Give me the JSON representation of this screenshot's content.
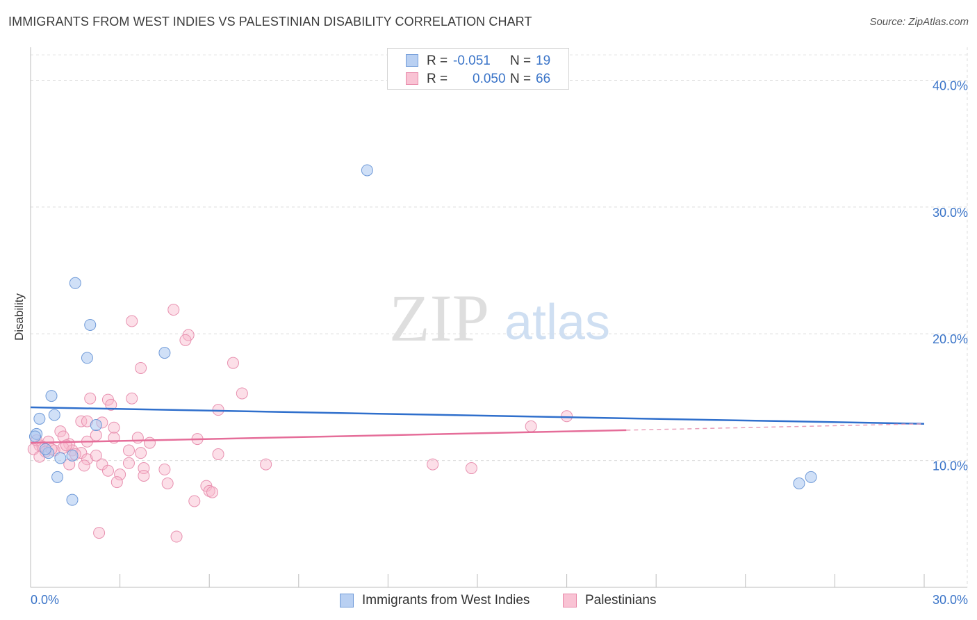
{
  "title": "IMMIGRANTS FROM WEST INDIES VS PALESTINIAN DISABILITY CORRELATION CHART",
  "source": "Source: ZipAtlas.com",
  "watermark": {
    "zip": "ZIP",
    "atlas": "atlas"
  },
  "legend": {
    "r_label": "R =",
    "n_label": "N =",
    "series": [
      {
        "name": "Immigrants from West Indies",
        "r": "-0.051",
        "n": "19",
        "fill": "#b9d0f2",
        "stroke": "#6f9ad8"
      },
      {
        "name": "Palestinians",
        "r": "0.050",
        "n": "66",
        "fill": "#f9c3d4",
        "stroke": "#e887a8"
      }
    ]
  },
  "chart_data": {
    "type": "scatter",
    "title": "IMMIGRANTS FROM WEST INDIES VS PALESTINIAN DISABILITY CORRELATION CHART",
    "xlabel": "",
    "ylabel": "Disability",
    "xlim": [
      0,
      30
    ],
    "ylim": [
      0,
      42
    ],
    "x_tick_labels": [
      "0.0%",
      "30.0%"
    ],
    "y_ticks": [
      10,
      20,
      30,
      40
    ],
    "y_tick_labels": [
      "10.0%",
      "20.0%",
      "30.0%",
      "40.0%"
    ],
    "grid": true,
    "series": [
      {
        "name": "Immigrants from West Indies",
        "color": "#3a74c8",
        "points": [
          [
            11.3,
            32.9
          ],
          [
            1.5,
            24.0
          ],
          [
            2.0,
            20.7
          ],
          [
            1.9,
            18.1
          ],
          [
            4.5,
            18.5
          ],
          [
            0.7,
            15.1
          ],
          [
            0.3,
            13.3
          ],
          [
            0.8,
            13.6
          ],
          [
            2.2,
            12.8
          ],
          [
            0.2,
            12.1
          ],
          [
            0.15,
            11.9
          ],
          [
            0.6,
            10.6
          ],
          [
            1.4,
            10.4
          ],
          [
            1.0,
            10.2
          ],
          [
            0.9,
            8.7
          ],
          [
            1.4,
            6.9
          ],
          [
            25.8,
            8.2
          ],
          [
            26.2,
            8.7
          ],
          [
            0.5,
            10.9
          ]
        ],
        "trend": {
          "x": [
            0,
            30
          ],
          "y": [
            14.2,
            12.9
          ]
        }
      },
      {
        "name": "Palestinians",
        "color": "#e26b97",
        "points": [
          [
            4.8,
            21.9
          ],
          [
            3.4,
            21.0
          ],
          [
            5.3,
            19.9
          ],
          [
            5.2,
            19.5
          ],
          [
            3.7,
            17.3
          ],
          [
            6.8,
            17.7
          ],
          [
            7.1,
            15.3
          ],
          [
            2.0,
            14.9
          ],
          [
            2.6,
            14.8
          ],
          [
            3.4,
            14.9
          ],
          [
            2.7,
            14.4
          ],
          [
            6.3,
            14.0
          ],
          [
            16.8,
            12.7
          ],
          [
            18.0,
            13.5
          ],
          [
            1.7,
            13.1
          ],
          [
            2.4,
            13.0
          ],
          [
            1.9,
            13.1
          ],
          [
            2.8,
            12.6
          ],
          [
            1.0,
            12.3
          ],
          [
            2.2,
            12.0
          ],
          [
            3.6,
            11.8
          ],
          [
            5.6,
            11.7
          ],
          [
            0.3,
            11.2
          ],
          [
            0.6,
            11.5
          ],
          [
            1.3,
            11.3
          ],
          [
            1.1,
            11.9
          ],
          [
            1.9,
            11.5
          ],
          [
            2.8,
            11.8
          ],
          [
            4.0,
            11.4
          ],
          [
            0.1,
            10.9
          ],
          [
            0.4,
            11.1
          ],
          [
            0.5,
            10.7
          ],
          [
            0.8,
            10.8
          ],
          [
            1.1,
            11.0
          ],
          [
            1.4,
            10.8
          ],
          [
            1.7,
            10.6
          ],
          [
            3.3,
            10.8
          ],
          [
            3.7,
            10.6
          ],
          [
            6.3,
            10.5
          ],
          [
            0.3,
            10.3
          ],
          [
            1.5,
            10.5
          ],
          [
            1.9,
            10.1
          ],
          [
            1.3,
            9.7
          ],
          [
            1.8,
            9.6
          ],
          [
            2.4,
            9.7
          ],
          [
            3.3,
            9.8
          ],
          [
            2.6,
            9.2
          ],
          [
            3.8,
            9.4
          ],
          [
            4.5,
            9.3
          ],
          [
            7.9,
            9.7
          ],
          [
            13.5,
            9.7
          ],
          [
            14.8,
            9.4
          ],
          [
            3.0,
            8.9
          ],
          [
            3.8,
            8.8
          ],
          [
            2.9,
            8.3
          ],
          [
            4.6,
            8.2
          ],
          [
            5.9,
            8.0
          ],
          [
            6.0,
            7.6
          ],
          [
            6.1,
            7.5
          ],
          [
            5.5,
            6.8
          ],
          [
            2.3,
            4.3
          ],
          [
            4.9,
            4.0
          ],
          [
            0.2,
            11.6
          ],
          [
            0.7,
            10.9
          ],
          [
            1.2,
            11.2
          ],
          [
            2.2,
            10.4
          ]
        ],
        "trend": {
          "x": [
            0,
            20
          ],
          "y": [
            11.4,
            12.4
          ],
          "dashed_extension_to_x": 30
        }
      }
    ]
  }
}
